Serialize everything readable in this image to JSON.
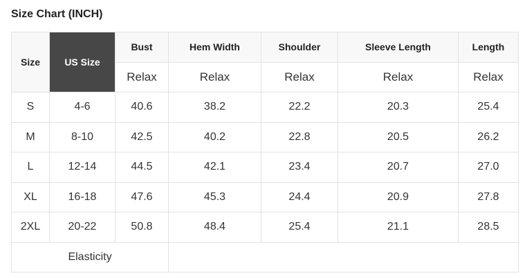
{
  "title": "Size Chart (INCH)",
  "headers": {
    "size": "Size",
    "us_size": "US Size",
    "bust": "Bust",
    "hem_width": "Hem Width",
    "shoulder": "Shoulder",
    "sleeve_length": "Sleeve Length",
    "length": "Length"
  },
  "fit": [
    "Relax",
    "Relax",
    "Relax",
    "Relax",
    "Relax"
  ],
  "rows": [
    [
      "S",
      "4-6",
      "40.6",
      "38.2",
      "22.2",
      "20.3",
      "25.4"
    ],
    [
      "M",
      "8-10",
      "42.5",
      "40.2",
      "22.8",
      "20.5",
      "26.2"
    ],
    [
      "L",
      "12-14",
      "44.5",
      "42.1",
      "23.4",
      "20.7",
      "27.0"
    ],
    [
      "XL",
      "16-18",
      "47.6",
      "45.3",
      "24.4",
      "20.9",
      "27.8"
    ],
    [
      "2XL",
      "20-22",
      "50.8",
      "48.4",
      "25.4",
      "21.1",
      "28.5"
    ]
  ],
  "footer": {
    "elasticity_label": "Elasticity",
    "elasticity_value": ""
  }
}
